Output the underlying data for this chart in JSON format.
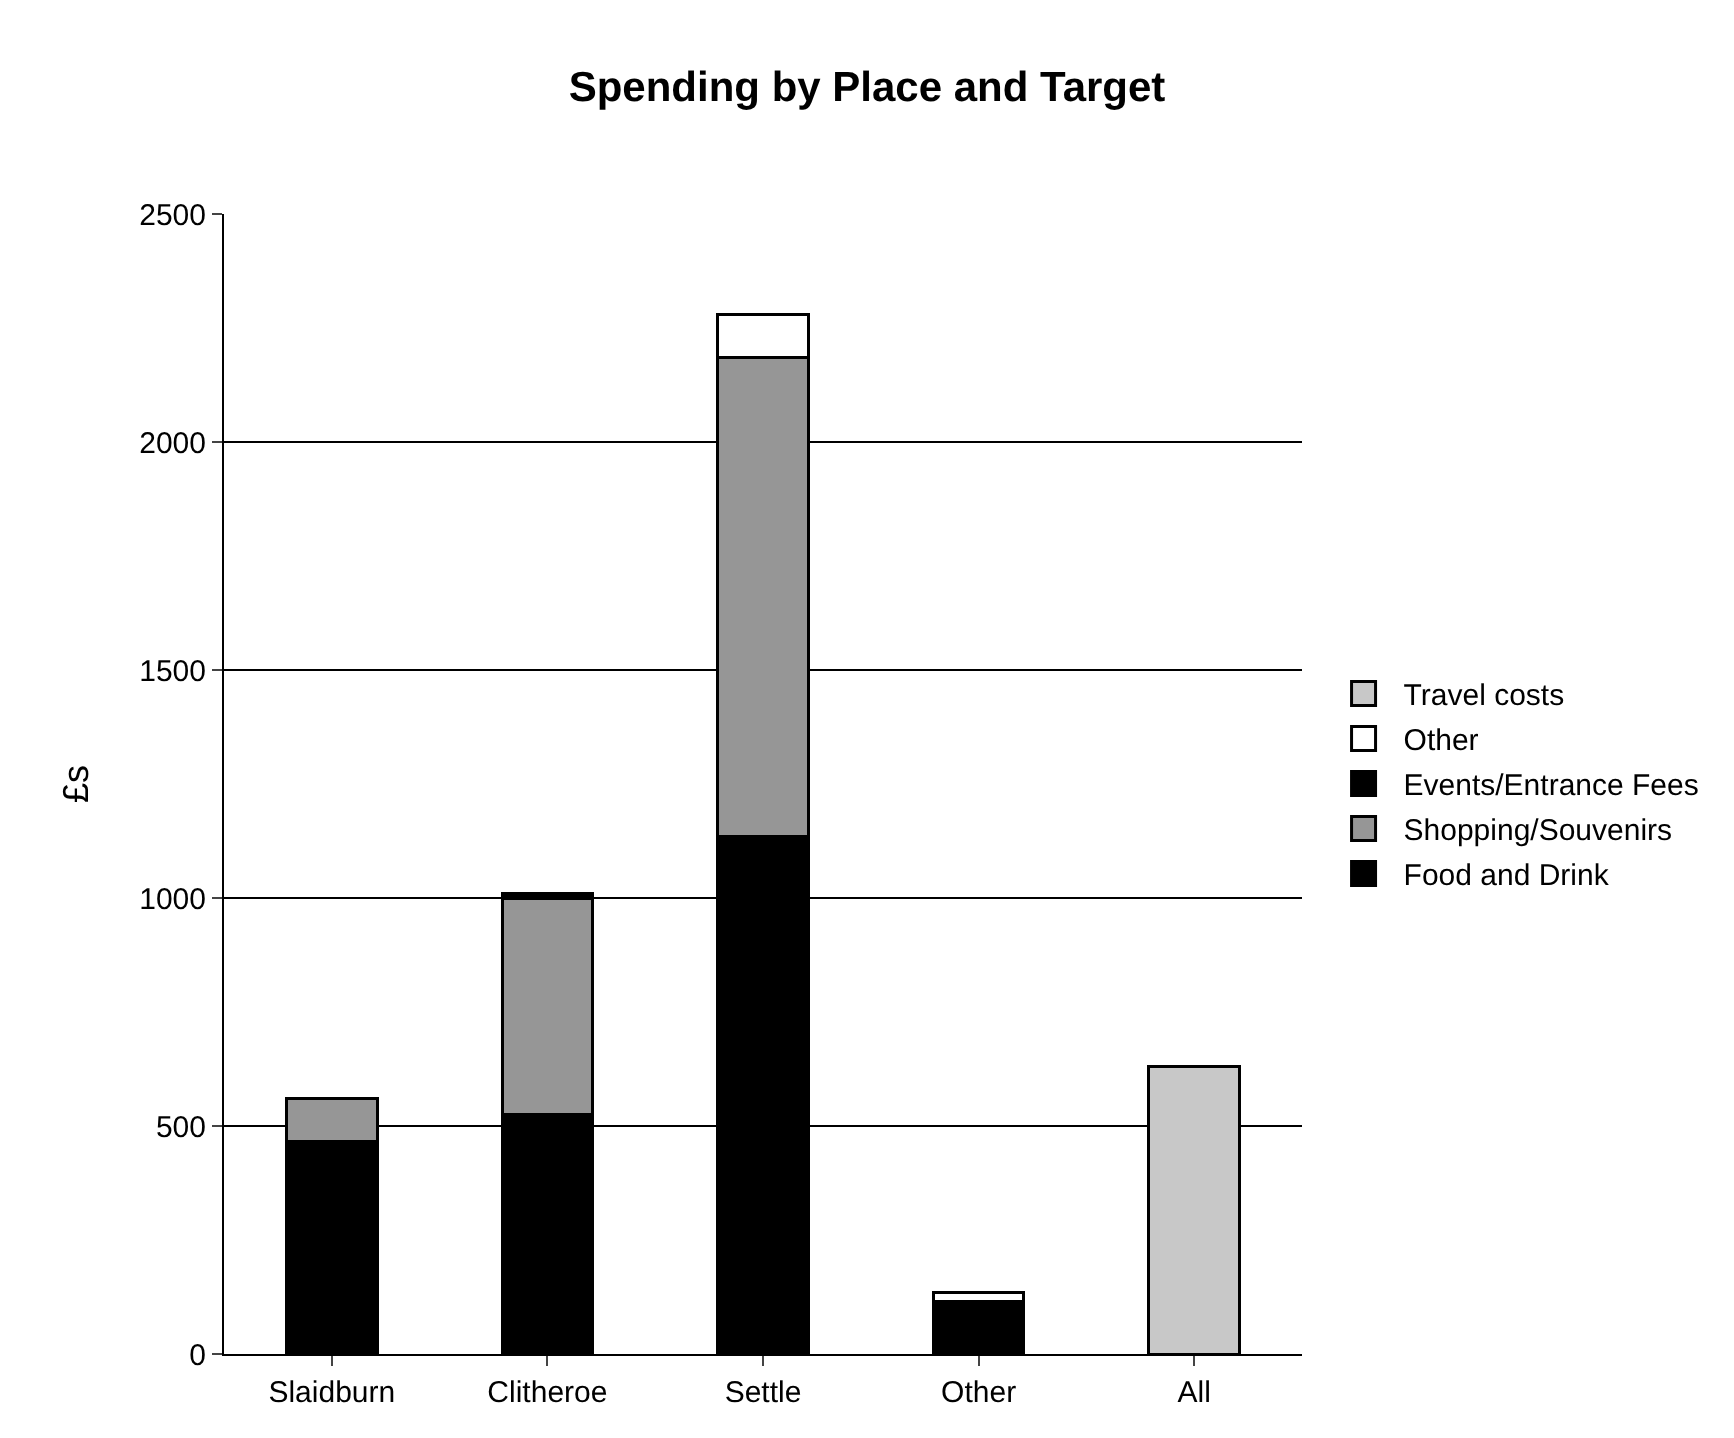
{
  "chart_data": {
    "type": "bar",
    "title": "Spending by Place and Target",
    "ylabel": "£s",
    "stacked": true,
    "categories": [
      "Slaidburn",
      "Clitheroe",
      "Settle",
      "Other",
      "All"
    ],
    "series": [
      {
        "name": "Food and Drink",
        "color": "#000000",
        "values": [
          465,
          525,
          1135,
          115,
          null
        ]
      },
      {
        "name": "Shopping/Souvenirs",
        "color": "#969696",
        "values": [
          95,
          475,
          1050,
          null,
          null
        ]
      },
      {
        "name": "Events/Entrance Fees",
        "color": "#000000",
        "values": [
          null,
          10,
          null,
          null,
          null
        ]
      },
      {
        "name": "Other",
        "color": "#ffffff",
        "values": [
          null,
          null,
          95,
          20,
          null
        ]
      },
      {
        "name": "Travel costs",
        "color": "#c8c8c8",
        "values": [
          null,
          null,
          null,
          null,
          630
        ]
      }
    ],
    "ylim": [
      0,
      2500
    ],
    "yticks": [
      0,
      500,
      1000,
      1500,
      2000,
      2500
    ],
    "grid": "y",
    "legend": "right"
  }
}
